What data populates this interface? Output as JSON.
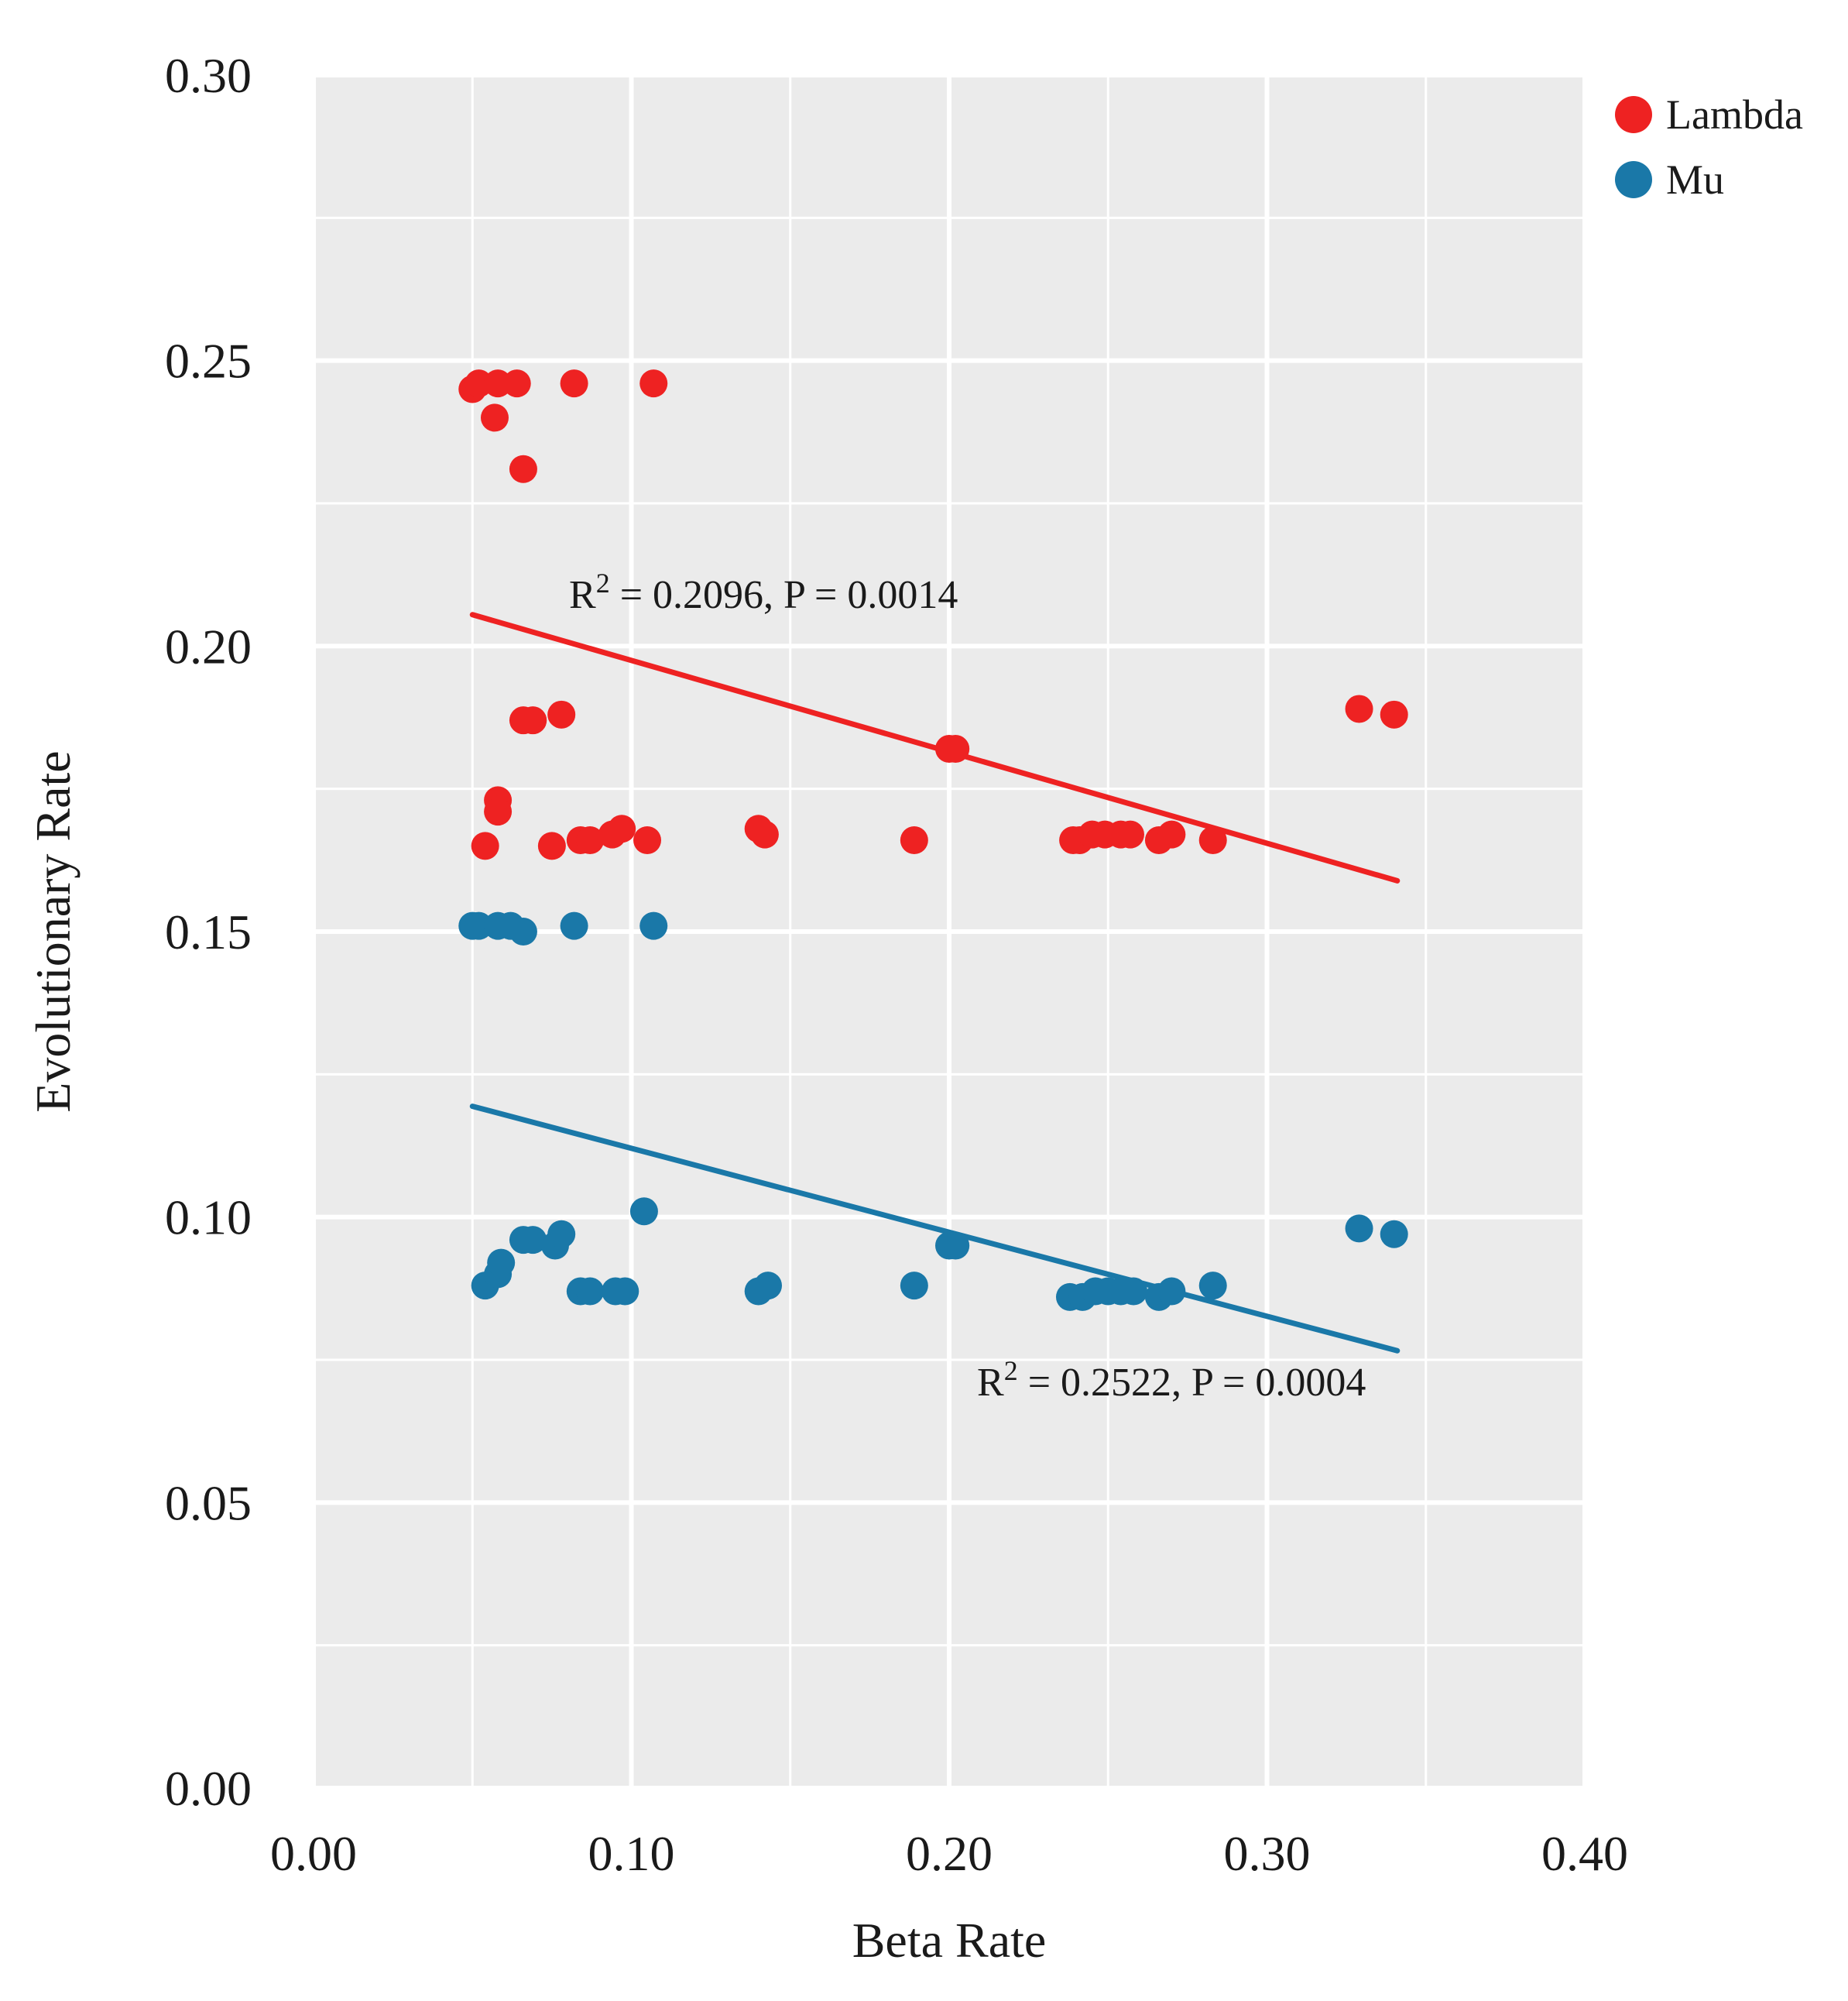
{
  "chart_data": {
    "type": "scatter",
    "title": "",
    "xlabel": "Beta Rate",
    "ylabel": "Evolutionary Rate",
    "xlim": [
      0.0,
      0.4
    ],
    "ylim": [
      0.0,
      0.3
    ],
    "x_ticks": [
      0.0,
      0.1,
      0.2,
      0.3,
      0.4
    ],
    "x_tick_labels": [
      "0.00",
      "0.10",
      "0.20",
      "0.30",
      "0.40"
    ],
    "y_ticks": [
      0.0,
      0.05,
      0.1,
      0.15,
      0.2,
      0.25,
      0.3
    ],
    "y_tick_labels": [
      "0.00",
      "0.05",
      "0.10",
      "0.15",
      "0.20",
      "0.25",
      "0.30"
    ],
    "grid": true,
    "legend_position": "top-right",
    "colors": {
      "panel": "#ebebeb",
      "grid": "#ffffff"
    },
    "series": [
      {
        "name": "Lambda",
        "color": "#ee2222",
        "points": [
          [
            0.05,
            0.245
          ],
          [
            0.052,
            0.246
          ],
          [
            0.058,
            0.246
          ],
          [
            0.064,
            0.246
          ],
          [
            0.082,
            0.246
          ],
          [
            0.107,
            0.246
          ],
          [
            0.057,
            0.24
          ],
          [
            0.066,
            0.231
          ],
          [
            0.066,
            0.187
          ],
          [
            0.069,
            0.187
          ],
          [
            0.078,
            0.188
          ],
          [
            0.058,
            0.173
          ],
          [
            0.058,
            0.171
          ],
          [
            0.054,
            0.165
          ],
          [
            0.075,
            0.165
          ],
          [
            0.084,
            0.166
          ],
          [
            0.087,
            0.166
          ],
          [
            0.094,
            0.167
          ],
          [
            0.097,
            0.168
          ],
          [
            0.105,
            0.166
          ],
          [
            0.14,
            0.168
          ],
          [
            0.142,
            0.167
          ],
          [
            0.189,
            0.166
          ],
          [
            0.2,
            0.182
          ],
          [
            0.202,
            0.182
          ],
          [
            0.239,
            0.166
          ],
          [
            0.241,
            0.166
          ],
          [
            0.245,
            0.167
          ],
          [
            0.249,
            0.167
          ],
          [
            0.254,
            0.167
          ],
          [
            0.257,
            0.167
          ],
          [
            0.266,
            0.166
          ],
          [
            0.27,
            0.167
          ],
          [
            0.283,
            0.166
          ],
          [
            0.329,
            0.189
          ],
          [
            0.34,
            0.188
          ]
        ],
        "regression": {
          "x": [
            0.05,
            0.341
          ],
          "y": [
            0.2055,
            0.1589
          ],
          "label": "R² = 0.2096, P = 0.0014"
        }
      },
      {
        "name": "Mu",
        "color": "#1a78a8",
        "points": [
          [
            0.05,
            0.151
          ],
          [
            0.052,
            0.151
          ],
          [
            0.058,
            0.151
          ],
          [
            0.062,
            0.151
          ],
          [
            0.066,
            0.15
          ],
          [
            0.082,
            0.151
          ],
          [
            0.107,
            0.151
          ],
          [
            0.054,
            0.088
          ],
          [
            0.058,
            0.09
          ],
          [
            0.059,
            0.092
          ],
          [
            0.066,
            0.096
          ],
          [
            0.069,
            0.096
          ],
          [
            0.076,
            0.095
          ],
          [
            0.078,
            0.097
          ],
          [
            0.084,
            0.087
          ],
          [
            0.087,
            0.087
          ],
          [
            0.095,
            0.087
          ],
          [
            0.098,
            0.087
          ],
          [
            0.104,
            0.101
          ],
          [
            0.14,
            0.087
          ],
          [
            0.143,
            0.088
          ],
          [
            0.189,
            0.088
          ],
          [
            0.2,
            0.095
          ],
          [
            0.202,
            0.095
          ],
          [
            0.238,
            0.086
          ],
          [
            0.242,
            0.086
          ],
          [
            0.246,
            0.087
          ],
          [
            0.25,
            0.087
          ],
          [
            0.254,
            0.087
          ],
          [
            0.258,
            0.087
          ],
          [
            0.266,
            0.086
          ],
          [
            0.27,
            0.087
          ],
          [
            0.283,
            0.088
          ],
          [
            0.329,
            0.098
          ],
          [
            0.34,
            0.097
          ]
        ],
        "regression": {
          "x": [
            0.05,
            0.341
          ],
          "y": [
            0.1194,
            0.0766
          ],
          "label": "R² = 0.2522, P = 0.0004"
        }
      }
    ]
  }
}
